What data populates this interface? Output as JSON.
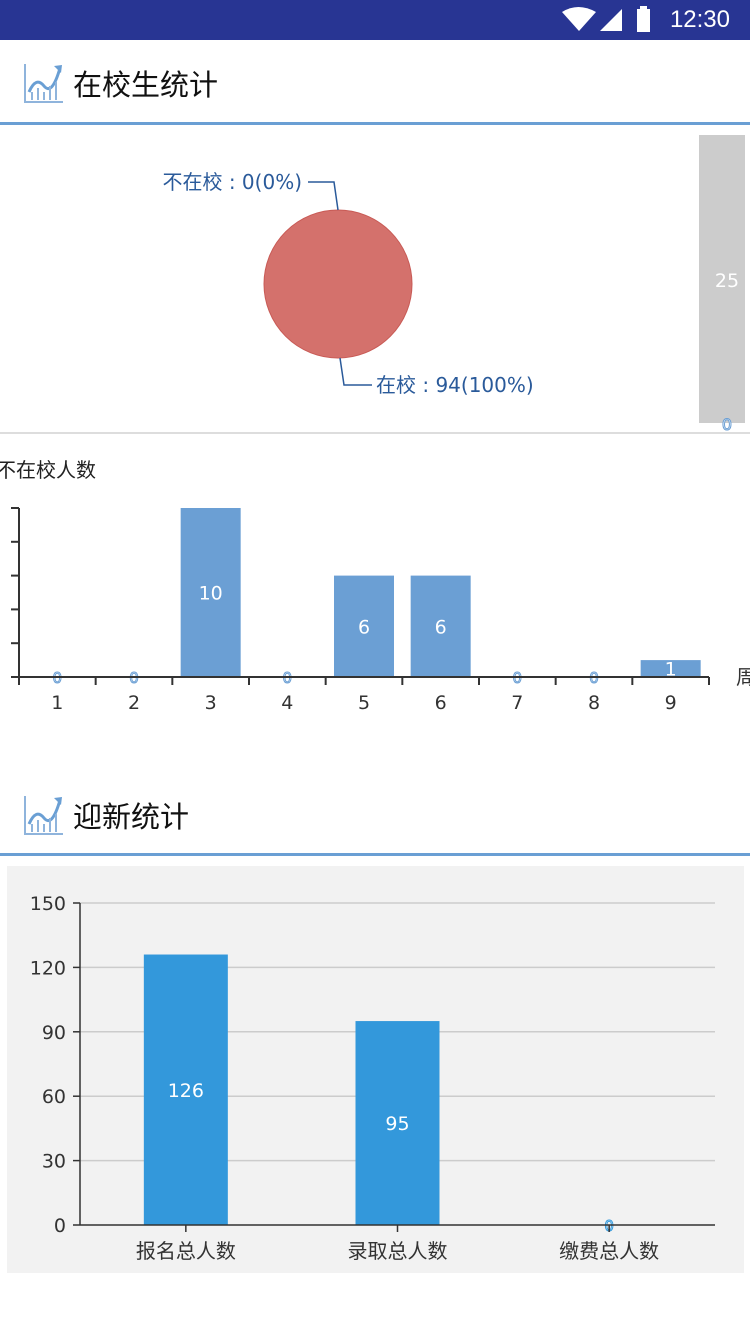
{
  "status_bar": {
    "time": "12:30",
    "icons": [
      "wifi-icon",
      "signal-icon",
      "battery-icon"
    ]
  },
  "section1": {
    "title": "在校生统计",
    "icon": "chart-trend-icon"
  },
  "pie": {
    "type": "pie",
    "slices": [
      {
        "label": "不在校 : 0(0%)",
        "name": "不在校",
        "value": 0
      },
      {
        "label": "在校 : 94(100%)",
        "name": "在校",
        "value": 94
      }
    ],
    "color": "#d4716c",
    "label_color": "#2a5a9a"
  },
  "side_bar": {
    "value_label": "25",
    "zero_label": "0"
  },
  "chart_data": [
    {
      "type": "bar",
      "ylabel": "不在校人数",
      "xlabel": "周",
      "categories": [
        "1",
        "2",
        "3",
        "4",
        "5",
        "6",
        "7",
        "8",
        "9"
      ],
      "values": [
        0,
        0,
        10,
        0,
        6,
        6,
        0,
        0,
        1
      ],
      "ylim": [
        0,
        10
      ],
      "color": "#6b9fd4",
      "grid": false
    },
    {
      "type": "bar",
      "categories": [
        "报名总人数",
        "录取总人数",
        "缴费总人数"
      ],
      "values": [
        126,
        95,
        0
      ],
      "ylim": [
        0,
        150
      ],
      "yticks": [
        "0",
        "30",
        "60",
        "90",
        "120",
        "150"
      ],
      "color": "#3398db",
      "grid": true
    }
  ],
  "section2": {
    "title": "迎新统计",
    "icon": "chart-trend-icon"
  }
}
